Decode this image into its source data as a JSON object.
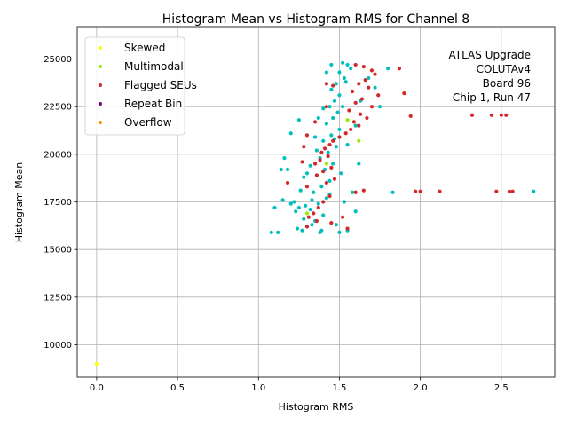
{
  "chart_data": {
    "type": "scatter",
    "title": "Histogram Mean vs Histogram RMS for Channel 8",
    "xlabel": "Histogram RMS",
    "ylabel": "Histogram Mean",
    "xlim": [
      -0.12,
      2.83
    ],
    "ylim": [
      8300,
      26700
    ],
    "x_ticks": [
      0.0,
      0.5,
      1.0,
      1.5,
      2.0,
      2.5
    ],
    "x_tick_labels": [
      "0.0",
      "0.5",
      "1.0",
      "1.5",
      "2.0",
      "2.5"
    ],
    "y_ticks": [
      10000,
      12500,
      15000,
      17500,
      20000,
      22500,
      25000
    ],
    "y_tick_labels": [
      "10000",
      "12500",
      "15000",
      "17500",
      "20000",
      "22500",
      "25000"
    ],
    "grid": true,
    "legend_position": "top-left",
    "annotation": [
      "ATLAS Upgrade",
      "COLUTAv4",
      "Board 96",
      "Chip 1, Run 47"
    ],
    "series": [
      {
        "name": "Skewed",
        "color": "#ffff00",
        "points": [
          [
            0.0,
            9000
          ]
        ]
      },
      {
        "name": "Multimodal",
        "color": "#99ee00",
        "points": [
          [
            1.62,
            20700
          ],
          [
            1.55,
            21800
          ],
          [
            1.42,
            19500
          ],
          [
            1.3,
            16900
          ]
        ]
      },
      {
        "name": "Flagged SEUs",
        "color": "#d62728",
        "points": [
          [
            1.97,
            18050
          ],
          [
            2.0,
            18050
          ],
          [
            2.12,
            18050
          ],
          [
            2.32,
            22050
          ],
          [
            2.44,
            22050
          ],
          [
            2.5,
            22050
          ],
          [
            2.53,
            22050
          ],
          [
            2.47,
            18050
          ],
          [
            2.55,
            18050
          ],
          [
            2.57,
            18050
          ],
          [
            1.94,
            22000
          ],
          [
            1.9,
            23200
          ],
          [
            1.87,
            24500
          ],
          [
            1.6,
            24700
          ],
          [
            1.65,
            24600
          ],
          [
            1.7,
            24400
          ],
          [
            1.72,
            24200
          ],
          [
            1.66,
            23900
          ],
          [
            1.62,
            23700
          ],
          [
            1.68,
            23500
          ],
          [
            1.58,
            23300
          ],
          [
            1.74,
            23100
          ],
          [
            1.64,
            22900
          ],
          [
            1.6,
            22700
          ],
          [
            1.7,
            22500
          ],
          [
            1.56,
            22300
          ],
          [
            1.63,
            22100
          ],
          [
            1.67,
            21900
          ],
          [
            1.59,
            21700
          ],
          [
            1.62,
            21500
          ],
          [
            1.57,
            21300
          ],
          [
            1.54,
            21100
          ],
          [
            1.5,
            20900
          ],
          [
            1.46,
            20700
          ],
          [
            1.44,
            20500
          ],
          [
            1.41,
            20300
          ],
          [
            1.39,
            20100
          ],
          [
            1.43,
            19900
          ],
          [
            1.38,
            19700
          ],
          [
            1.35,
            19500
          ],
          [
            1.45,
            19300
          ],
          [
            1.4,
            19100
          ],
          [
            1.36,
            18900
          ],
          [
            1.47,
            18700
          ],
          [
            1.42,
            18500
          ],
          [
            1.6,
            18000
          ],
          [
            1.65,
            18100
          ],
          [
            1.44,
            17800
          ],
          [
            1.4,
            17500
          ],
          [
            1.37,
            17200
          ],
          [
            1.34,
            16900
          ],
          [
            1.31,
            16700
          ],
          [
            1.36,
            16500
          ],
          [
            1.3,
            16200
          ],
          [
            1.45,
            16400
          ],
          [
            1.52,
            16700
          ],
          [
            1.55,
            16100
          ],
          [
            1.42,
            23700
          ],
          [
            1.46,
            23600
          ],
          [
            1.42,
            22500
          ],
          [
            1.28,
            20400
          ],
          [
            1.27,
            19600
          ],
          [
            1.3,
            18300
          ],
          [
            1.18,
            18500
          ],
          [
            1.3,
            21000
          ],
          [
            1.35,
            21700
          ]
        ]
      },
      {
        "name": "Repeat Bin",
        "color": "#800080",
        "points": []
      },
      {
        "name": "Overflow",
        "color": "#ff8c00",
        "points": []
      },
      {
        "name": "",
        "color": "#00bfbf",
        "points": [
          [
            1.52,
            24800
          ],
          [
            1.55,
            24700
          ],
          [
            1.57,
            24500
          ],
          [
            1.5,
            24300
          ],
          [
            1.53,
            24000
          ],
          [
            1.48,
            23700
          ],
          [
            1.45,
            23400
          ],
          [
            1.5,
            23100
          ],
          [
            1.47,
            22800
          ],
          [
            1.44,
            22500
          ],
          [
            1.49,
            22200
          ],
          [
            1.46,
            21900
          ],
          [
            1.42,
            21600
          ],
          [
            1.5,
            21300
          ],
          [
            1.45,
            21000
          ],
          [
            1.4,
            20700
          ],
          [
            1.48,
            20400
          ],
          [
            1.43,
            20100
          ],
          [
            1.38,
            19800
          ],
          [
            1.46,
            19500
          ],
          [
            1.41,
            19200
          ],
          [
            1.36,
            18900
          ],
          [
            1.44,
            18600
          ],
          [
            1.39,
            18300
          ],
          [
            1.34,
            18000
          ],
          [
            1.42,
            17700
          ],
          [
            1.37,
            17400
          ],
          [
            1.32,
            17100
          ],
          [
            1.4,
            16800
          ],
          [
            1.35,
            16500
          ],
          [
            1.3,
            16200
          ],
          [
            1.38,
            15900
          ],
          [
            1.27,
            16000
          ],
          [
            1.25,
            17200
          ],
          [
            1.22,
            17500
          ],
          [
            1.15,
            17600
          ],
          [
            1.1,
            17200
          ],
          [
            1.08,
            15900
          ],
          [
            1.12,
            15900
          ],
          [
            1.2,
            17400
          ],
          [
            1.18,
            19200
          ],
          [
            1.16,
            19800
          ],
          [
            1.14,
            19200
          ],
          [
            1.2,
            21100
          ],
          [
            1.25,
            21800
          ],
          [
            1.55,
            16000
          ],
          [
            1.6,
            17000
          ],
          [
            1.58,
            18000
          ],
          [
            1.62,
            19500
          ],
          [
            1.55,
            20500
          ],
          [
            1.6,
            21500
          ],
          [
            1.63,
            22800
          ],
          [
            1.68,
            24000
          ],
          [
            1.72,
            23500
          ],
          [
            1.75,
            22500
          ],
          [
            1.8,
            24500
          ],
          [
            1.83,
            18000
          ],
          [
            2.7,
            18050
          ],
          [
            1.3,
            19000
          ],
          [
            1.28,
            18800
          ],
          [
            1.26,
            18100
          ],
          [
            1.33,
            17600
          ],
          [
            1.29,
            17300
          ],
          [
            1.35,
            20900
          ],
          [
            1.37,
            21900
          ],
          [
            1.4,
            22400
          ],
          [
            1.42,
            24300
          ],
          [
            1.45,
            24700
          ],
          [
            1.48,
            16300
          ],
          [
            1.5,
            15900
          ],
          [
            1.33,
            16300
          ],
          [
            1.24,
            16100
          ],
          [
            1.32,
            19400
          ],
          [
            1.36,
            20200
          ],
          [
            1.44,
            17900
          ],
          [
            1.47,
            20800
          ],
          [
            1.52,
            22500
          ],
          [
            1.54,
            23800
          ],
          [
            1.51,
            19000
          ],
          [
            1.53,
            17500
          ],
          [
            1.28,
            16600
          ],
          [
            1.23,
            17000
          ],
          [
            1.39,
            16000
          ]
        ]
      }
    ]
  }
}
